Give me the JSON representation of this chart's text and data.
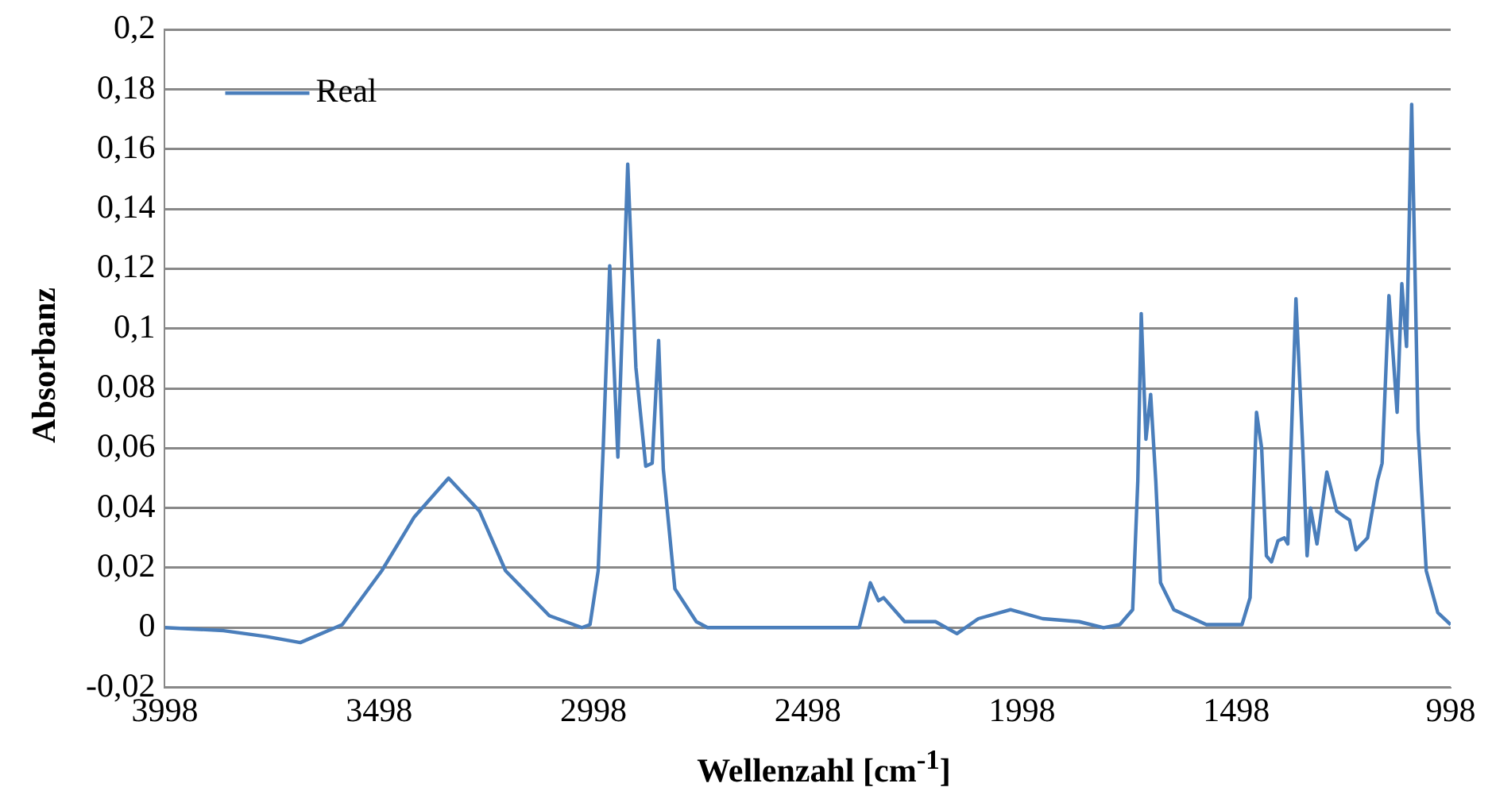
{
  "chart_data": {
    "type": "line",
    "xlabel": "Wellenzahl [cm$^{-1}$]",
    "ylabel": "Absorbanz",
    "xlim": [
      3998,
      998
    ],
    "xticks": [
      3998,
      3498,
      2998,
      2498,
      1998,
      1498,
      998
    ],
    "ylim": [
      -0.02,
      0.2
    ],
    "yticks": [
      {
        "value": -0.02,
        "label": "-0,02"
      },
      0,
      {
        "value": 0.02,
        "label": "0,02"
      },
      {
        "value": 0.04,
        "label": "0,04"
      },
      {
        "value": 0.06,
        "label": "0,06"
      },
      {
        "value": 0.08,
        "label": "0,08"
      },
      {
        "value": 0.1,
        "label": "0,1"
      },
      {
        "value": 0.12,
        "label": "0,12"
      },
      {
        "value": 0.14,
        "label": "0,14"
      },
      {
        "value": 0.16,
        "label": "0,16"
      },
      {
        "value": 0.18,
        "label": "0,18"
      },
      {
        "value": 0.2,
        "label": "0,2"
      }
    ],
    "grid": "y",
    "legend": "top left",
    "marker": "none",
    "line_style": "solid",
    "series": [
      {
        "name": "Real",
        "color": "#4a7ebb",
        "x": [
          3998,
          3861,
          3760,
          3682,
          3584,
          3492,
          3416,
          3336,
          3264,
          3203,
          3101,
          3025,
          3006,
          2987,
          2975,
          2960,
          2941,
          2918,
          2899,
          2876,
          2861,
          2846,
          2835,
          2808,
          2758,
          2732,
          2568,
          2378,
          2352,
          2333,
          2321,
          2272,
          2200,
          2150,
          2100,
          2025,
          1950,
          1865,
          1808,
          1770,
          1740,
          1728,
          1720,
          1709,
          1698,
          1686,
          1675,
          1644,
          1568,
          1485,
          1466,
          1451,
          1439,
          1428,
          1416,
          1401,
          1386,
          1378,
          1359,
          1344,
          1333,
          1325,
          1310,
          1287,
          1264,
          1245,
          1234,
          1219,
          1192,
          1169,
          1158,
          1142,
          1123,
          1112,
          1101,
          1089,
          1074,
          1055,
          1028,
          998
        ],
        "values": [
          0,
          -0.001,
          -0.003,
          -0.005,
          0.001,
          0.019,
          0.037,
          0.05,
          0.039,
          0.019,
          0.004,
          0,
          0.001,
          0.019,
          0.061,
          0.121,
          0.057,
          0.155,
          0.087,
          0.054,
          0.055,
          0.096,
          0.053,
          0.013,
          0.002,
          0,
          0,
          0,
          0.015,
          0.009,
          0.01,
          0.002,
          0.002,
          -0.002,
          0.003,
          0.006,
          0.003,
          0.002,
          0,
          0.001,
          0.006,
          0.049,
          0.105,
          0.063,
          0.078,
          0.049,
          0.015,
          0.006,
          0.001,
          0.001,
          0.01,
          0.072,
          0.06,
          0.024,
          0.022,
          0.029,
          0.03,
          0.028,
          0.11,
          0.063,
          0.024,
          0.04,
          0.028,
          0.052,
          0.039,
          0.037,
          0.036,
          0.026,
          0.03,
          0.049,
          0.055,
          0.111,
          0.072,
          0.115,
          0.094,
          0.175,
          0.066,
          0.019,
          0.005,
          0.001
        ]
      }
    ]
  }
}
